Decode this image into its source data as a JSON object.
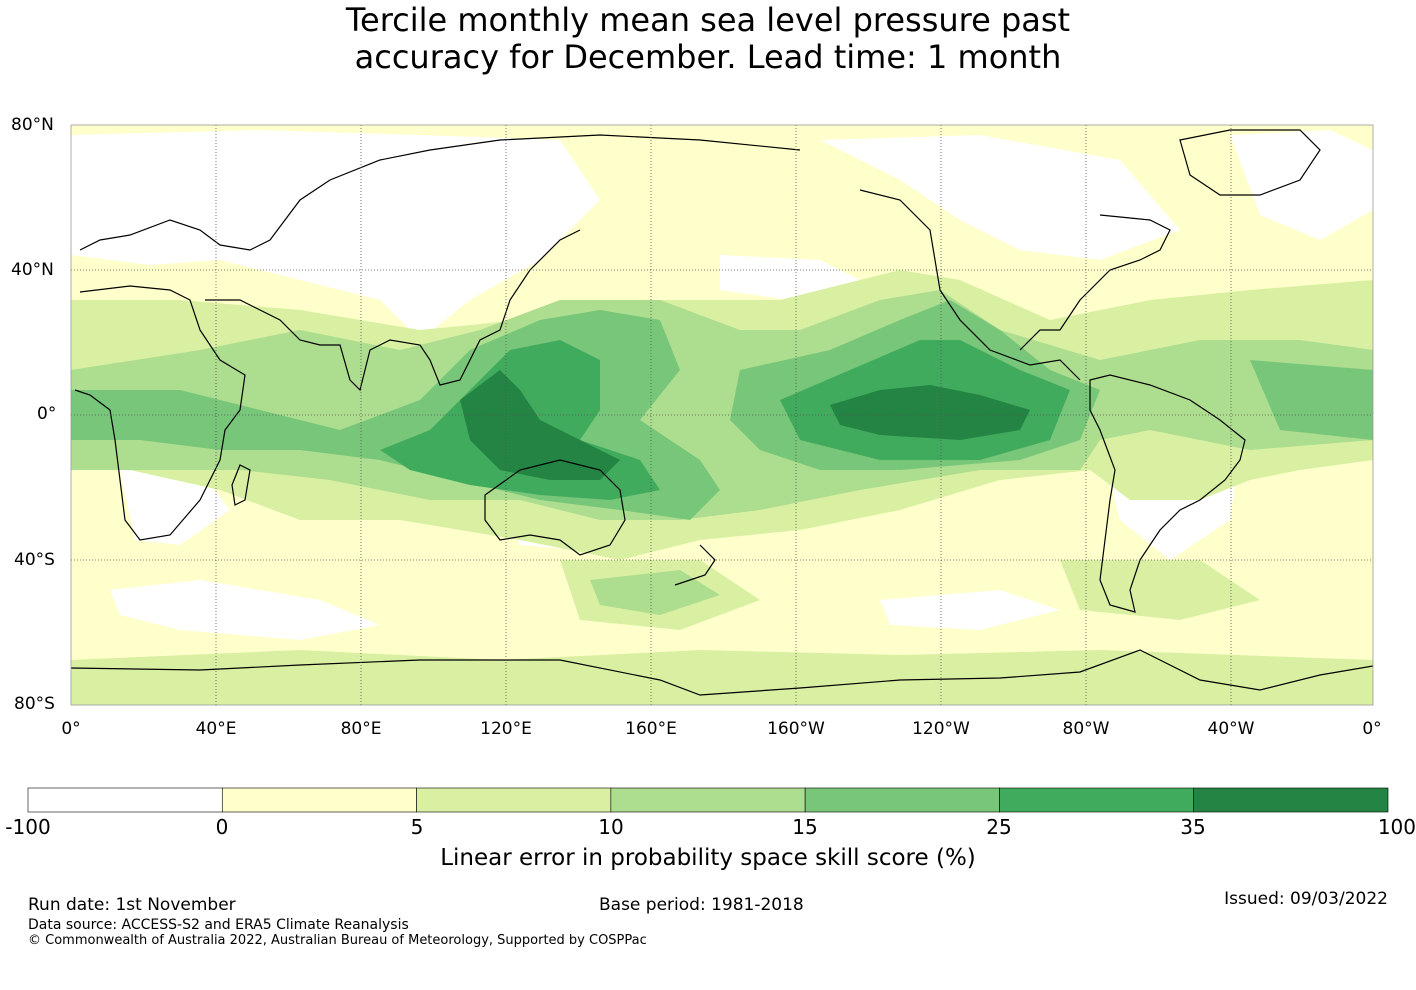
{
  "title": {
    "line1": "Tercile monthly mean sea level pressure past",
    "line2": "accuracy for December. Lead time: 1 month"
  },
  "map": {
    "lat_labels": [
      "80°N",
      "40°N",
      "0°",
      "40°S",
      "80°S"
    ],
    "lon_labels": [
      "0°",
      "40°E",
      "80°E",
      "120°E",
      "160°E",
      "160°W",
      "120°W",
      "80°W",
      "40°W",
      "0°"
    ]
  },
  "colorbar": {
    "labels": [
      "-100",
      "0",
      "5",
      "10",
      "15",
      "25",
      "35",
      "100"
    ],
    "colors": [
      "#ffffff",
      "#ffffcc",
      "#d9f0a3",
      "#addd8e",
      "#78c679",
      "#41ab5d",
      "#238443"
    ],
    "title": "Linear error in probability space skill score (%)"
  },
  "footer": {
    "run_date": "Run date: 1st November",
    "base_period": "Base period: 1981-2018",
    "issued": "Issued: 09/03/2022",
    "data_source": "Data source: ACCESS-S2 and ERA5 Climate Reanalysis",
    "copyright": "© Commonwealth of Australia 2022, Australian Bureau of Meteorology, Supported by COSPPac"
  }
}
